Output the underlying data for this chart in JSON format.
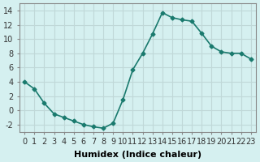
{
  "x": [
    0,
    1,
    2,
    3,
    4,
    5,
    6,
    7,
    8,
    9,
    10,
    11,
    12,
    13,
    14,
    15,
    16,
    17,
    18,
    19,
    20,
    21,
    22,
    23
  ],
  "y": [
    4.0,
    3.0,
    1.0,
    -0.5,
    -1.0,
    -1.5,
    -2.0,
    -2.3,
    -2.5,
    -1.8,
    1.5,
    5.7,
    8.0,
    10.7,
    13.7,
    13.0,
    12.7,
    12.5,
    10.8,
    9.0,
    8.2,
    8.0,
    8.0,
    7.2
  ],
  "line_color": "#1a7a6e",
  "marker": "D",
  "marker_size": 2.5,
  "linewidth": 1.2,
  "bg_color": "#d5f0f0",
  "grid_color": "#c0d8d8",
  "xlabel": "Humidex (Indice chaleur)",
  "ylim": [
    -3,
    15
  ],
  "xlim": [
    -0.5,
    23.5
  ],
  "yticks": [
    -2,
    0,
    2,
    4,
    6,
    8,
    10,
    12,
    14
  ],
  "xticks": [
    0,
    1,
    2,
    3,
    4,
    5,
    6,
    7,
    8,
    9,
    10,
    11,
    12,
    13,
    14,
    15,
    16,
    17,
    18,
    19,
    20,
    21,
    22,
    23
  ],
  "xlabel_fontsize": 8,
  "tick_fontsize": 7
}
